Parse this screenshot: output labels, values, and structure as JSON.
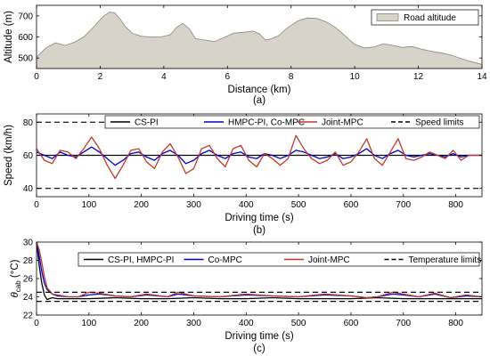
{
  "chart_data": [
    {
      "type": "area",
      "caption": "(a)",
      "xlabel": "Distance (km)",
      "ylabel": "Altitude (m)",
      "xlim": [
        0,
        14
      ],
      "ylim": [
        450,
        750
      ],
      "xticks": [
        0,
        2,
        4,
        6,
        8,
        10,
        12,
        14
      ],
      "yticks": [
        500,
        600,
        700
      ],
      "grid": false,
      "legend_position": "top-right",
      "fill_color": "#d8d3c9",
      "series": [
        {
          "name": "Road altitude",
          "x": [
            0,
            0.3,
            0.6,
            0.9,
            1.2,
            1.5,
            1.8,
            2.1,
            2.3,
            2.45,
            2.6,
            2.8,
            3.0,
            3.3,
            3.6,
            3.9,
            4.2,
            4.4,
            4.6,
            4.8,
            5.0,
            5.3,
            5.6,
            5.9,
            6.2,
            6.5,
            6.8,
            7.0,
            7.2,
            7.4,
            7.6,
            7.9,
            8.2,
            8.5,
            8.8,
            9.1,
            9.4,
            9.7,
            10.0,
            10.3,
            10.6,
            10.9,
            11.2,
            11.5,
            11.8,
            12.1,
            12.4,
            12.7,
            13.0,
            13.3,
            13.6,
            14.0
          ],
          "y": [
            505,
            548,
            572,
            560,
            575,
            602,
            648,
            698,
            718,
            715,
            690,
            648,
            618,
            603,
            600,
            600,
            610,
            645,
            665,
            638,
            592,
            585,
            578,
            598,
            618,
            622,
            628,
            615,
            585,
            592,
            605,
            645,
            675,
            690,
            688,
            672,
            645,
            605,
            565,
            548,
            552,
            568,
            560,
            550,
            555,
            542,
            532,
            525,
            515,
            500,
            485,
            470
          ]
        }
      ]
    },
    {
      "type": "line",
      "caption": "(b)",
      "xlabel": "Driving time (s)",
      "ylabel": "Speed (km/h)",
      "xlim": [
        0,
        850
      ],
      "ylim": [
        35,
        85
      ],
      "xticks": [
        0,
        100,
        200,
        300,
        400,
        500,
        600,
        700,
        800
      ],
      "yticks": [
        40,
        60,
        80
      ],
      "grid": false,
      "legend_position": "top",
      "series": [
        {
          "name": "CS-PI",
          "color": "#000000",
          "style": "solid",
          "x": [
            0,
            850
          ],
          "y": [
            60,
            60
          ]
        },
        {
          "name": "HMPC-PI, Co-MPC",
          "color": "#0000cc",
          "style": "solid",
          "x": [
            0,
            15,
            30,
            45,
            60,
            75,
            90,
            105,
            120,
            135,
            150,
            165,
            180,
            195,
            210,
            225,
            240,
            255,
            270,
            285,
            300,
            315,
            330,
            345,
            360,
            375,
            390,
            405,
            420,
            435,
            450,
            465,
            480,
            495,
            510,
            525,
            540,
            555,
            570,
            585,
            600,
            615,
            630,
            645,
            660,
            675,
            690,
            705,
            720,
            735,
            750,
            765,
            780,
            795,
            810,
            825,
            850
          ],
          "y": [
            62,
            60,
            58,
            62,
            60,
            59,
            62,
            65,
            62,
            58,
            54,
            57,
            61,
            62,
            59,
            57,
            61,
            63,
            60,
            55,
            57,
            61,
            63,
            60,
            58,
            61,
            62,
            59,
            58,
            61,
            60,
            58,
            60,
            63,
            62,
            60,
            58,
            59,
            61,
            58,
            59,
            61,
            64,
            60,
            58,
            61,
            63,
            60,
            59,
            60,
            61,
            60,
            59,
            61,
            59,
            60,
            60
          ]
        },
        {
          "name": "Joint-MPC",
          "color": "#c0392b",
          "style": "solid",
          "x": [
            0,
            15,
            30,
            45,
            60,
            75,
            90,
            105,
            120,
            135,
            150,
            165,
            180,
            195,
            210,
            225,
            240,
            255,
            270,
            285,
            300,
            315,
            330,
            345,
            360,
            375,
            390,
            405,
            420,
            435,
            450,
            465,
            480,
            495,
            510,
            525,
            540,
            555,
            570,
            585,
            600,
            615,
            630,
            645,
            660,
            675,
            690,
            705,
            720,
            735,
            750,
            765,
            780,
            795,
            810,
            825,
            850
          ],
          "y": [
            64,
            57,
            55,
            63,
            62,
            58,
            64,
            71,
            64,
            54,
            46,
            54,
            63,
            64,
            56,
            52,
            62,
            67,
            59,
            49,
            52,
            64,
            66,
            58,
            53,
            64,
            66,
            57,
            53,
            61,
            58,
            54,
            58,
            72,
            64,
            58,
            55,
            57,
            62,
            54,
            56,
            62,
            70,
            58,
            54,
            62,
            70,
            58,
            57,
            59,
            62,
            60,
            58,
            63,
            57,
            60,
            60
          ]
        },
        {
          "name": "Speed limits",
          "color": "#000000",
          "style": "dashed",
          "x": [
            0,
            850
          ],
          "y": [
            80,
            80
          ]
        },
        {
          "name": "",
          "color": "#000000",
          "style": "dashed",
          "x": [
            0,
            850
          ],
          "y": [
            40,
            40
          ]
        }
      ]
    },
    {
      "type": "line",
      "caption": "(c)",
      "xlabel": "Driving time (s)",
      "ylabel": "θ",
      "ylabel_sub": "cab",
      "ylabel_unit": " (°C)",
      "xlim": [
        0,
        850
      ],
      "ylim": [
        22,
        30
      ],
      "xticks": [
        0,
        100,
        200,
        300,
        400,
        500,
        600,
        700,
        800
      ],
      "yticks": [
        22,
        24,
        26,
        28,
        30
      ],
      "grid": false,
      "legend_position": "top",
      "series": [
        {
          "name": "CS-PI, HMPC-PI",
          "color": "#000000",
          "style": "solid",
          "x": [
            0,
            5,
            10,
            15,
            20,
            30,
            40,
            60,
            100,
            150,
            200,
            250,
            300,
            350,
            400,
            450,
            500,
            550,
            600,
            650,
            700,
            750,
            800,
            850
          ],
          "y": [
            30,
            27.5,
            25.5,
            24.2,
            23.7,
            23.9,
            23.8,
            23.8,
            23.8,
            23.9,
            23.8,
            23.8,
            23.9,
            23.8,
            23.8,
            23.9,
            23.8,
            23.8,
            23.8,
            23.9,
            23.8,
            23.8,
            23.8,
            23.8
          ]
        },
        {
          "name": "Co-MPC",
          "color": "#0000cc",
          "style": "solid",
          "x": [
            0,
            5,
            10,
            15,
            20,
            30,
            40,
            60,
            80,
            100,
            120,
            150,
            180,
            210,
            250,
            270,
            300,
            350,
            400,
            450,
            500,
            550,
            600,
            630,
            650,
            680,
            700,
            730,
            760,
            790,
            820,
            850
          ],
          "y": [
            30,
            28.5,
            26.8,
            25.5,
            24.8,
            24.3,
            24.1,
            24.0,
            24.0,
            24.2,
            24.3,
            24.1,
            24.0,
            24.2,
            24.0,
            24.3,
            24.1,
            24.0,
            24.2,
            24.1,
            24.0,
            24.2,
            24.1,
            23.9,
            24.0,
            24.3,
            24.2,
            24.0,
            24.3,
            23.9,
            24.1,
            24.0
          ]
        },
        {
          "name": "Joint-MPC",
          "color": "#c0392b",
          "style": "solid",
          "x": [
            0,
            5,
            10,
            15,
            20,
            30,
            40,
            60,
            80,
            100,
            120,
            150,
            180,
            210,
            250,
            270,
            300,
            350,
            400,
            450,
            500,
            550,
            600,
            630,
            650,
            680,
            700,
            730,
            760,
            790,
            820,
            850
          ],
          "y": [
            30,
            29.2,
            27.8,
            26.2,
            25.0,
            24.3,
            24.2,
            24.0,
            24.0,
            24.5,
            24.4,
            24.1,
            24.0,
            24.3,
            24.0,
            24.5,
            24.1,
            24.0,
            24.3,
            24.1,
            24.0,
            24.3,
            24.1,
            23.9,
            24.0,
            24.5,
            24.3,
            24.0,
            24.4,
            23.9,
            24.2,
            24.0
          ]
        },
        {
          "name": "Temperature limits",
          "color": "#000000",
          "style": "dashed",
          "x": [
            0,
            850
          ],
          "y": [
            24.5,
            24.5
          ]
        },
        {
          "name": "",
          "color": "#000000",
          "style": "dashed",
          "x": [
            0,
            850
          ],
          "y": [
            23.5,
            23.5
          ]
        }
      ]
    }
  ]
}
